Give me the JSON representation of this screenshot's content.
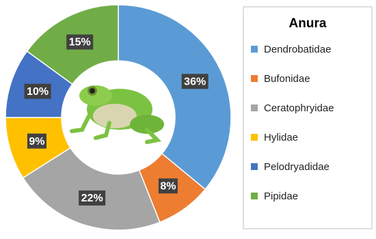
{
  "chart_data": {
    "type": "donut",
    "legend_title": "Anura",
    "categories": [
      "Dendrobatidae",
      "Bufonidae",
      "Ceratophryidae",
      "Hylidae",
      "Pelodryadidae",
      "Pipidae"
    ],
    "values": [
      36,
      8,
      22,
      9,
      10,
      15
    ],
    "value_labels": [
      "36%",
      "8%",
      "22%",
      "9%",
      "10%",
      "15%"
    ],
    "colors": [
      "#5b9bd5",
      "#ed7d31",
      "#a5a5a5",
      "#ffc000",
      "#4472c4",
      "#70ad47"
    ],
    "legend_position": "right"
  }
}
